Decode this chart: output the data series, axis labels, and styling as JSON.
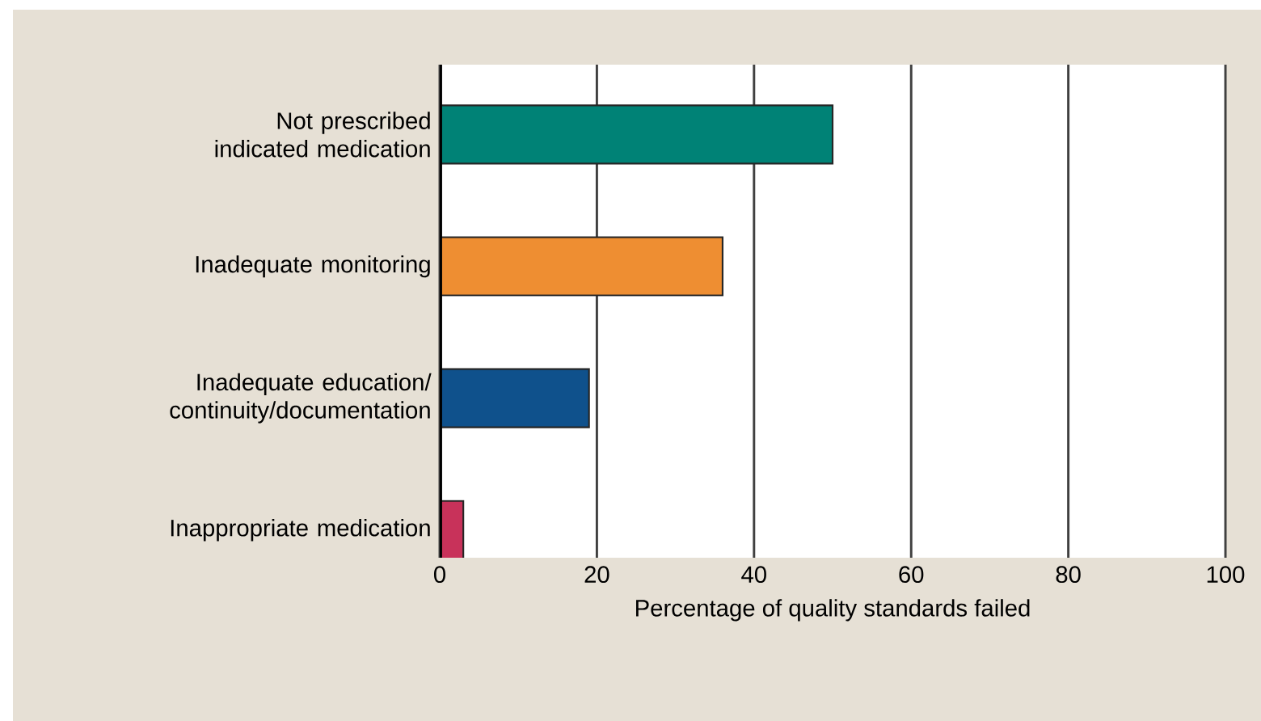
{
  "chart_data": {
    "type": "bar",
    "orientation": "horizontal",
    "xlabel": "Percentage of quality standards failed",
    "categories": [
      "Not prescribed indicated medication",
      "Inadequate monitoring",
      "Inadequate education/ continuity/documentation",
      "Inappropriate medication"
    ],
    "values": [
      50,
      36,
      19,
      3
    ],
    "colors": [
      "#008276",
      "#ee8e32",
      "#0f518c",
      "#c8325a"
    ],
    "xlim": [
      0,
      100
    ],
    "xticks": [
      0,
      20,
      40,
      60,
      80,
      100
    ],
    "grid": "x"
  }
}
